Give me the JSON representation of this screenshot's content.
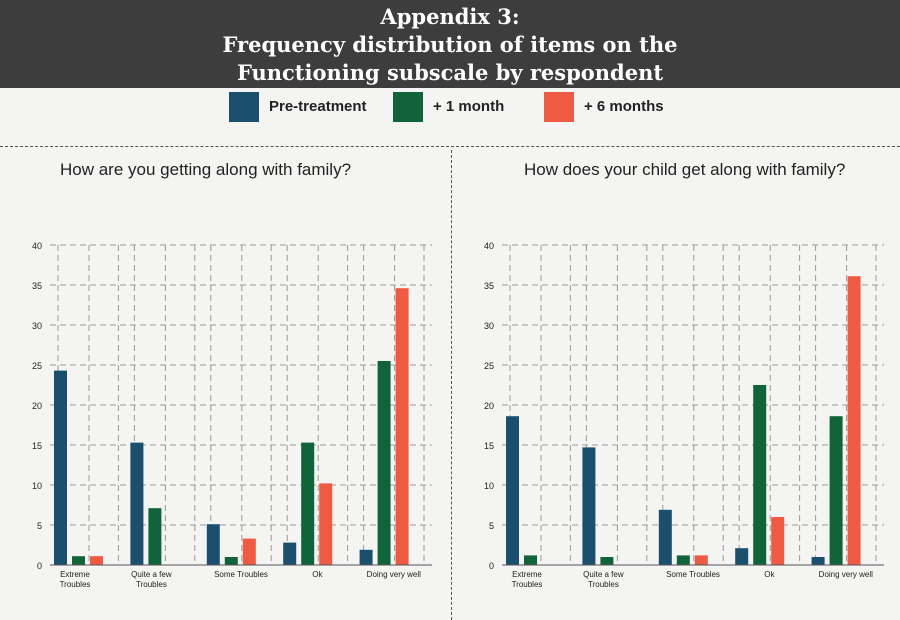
{
  "header": {
    "lines": [
      "Appendix 3:",
      "Frequency distribution of items on the",
      "Functioning subscale by respondent"
    ]
  },
  "legend": [
    {
      "label": "Pre-treatment",
      "color": "#1b4f6e"
    },
    {
      "label": "+ 1 month",
      "color": "#11643a"
    },
    {
      "label": "+ 6 months",
      "color": "#ef5a42"
    }
  ],
  "chart_data": [
    {
      "type": "bar",
      "title": "How are you getting along with family?",
      "categories": [
        "Extreme Troubles",
        "Quite a few Troubles",
        "Some Troubles",
        "Ok",
        "Doing very well"
      ],
      "category_lines": [
        [
          "Extreme",
          "Troubles"
        ],
        [
          "Quite a few",
          "Troubles"
        ],
        [
          "Some Troubles"
        ],
        [
          "Ok"
        ],
        [
          "Doing very well"
        ]
      ],
      "series": [
        {
          "name": "Pre-treatment",
          "values": [
            24.3,
            15.3,
            5.1,
            2.8,
            1.9
          ]
        },
        {
          "name": "+ 1 month",
          "values": [
            1.1,
            7.1,
            1.0,
            15.3,
            25.5
          ]
        },
        {
          "name": "+ 6 months",
          "values": [
            1.1,
            0,
            3.3,
            10.2,
            34.6
          ]
        }
      ],
      "yticks": [
        0,
        5,
        10,
        15,
        20,
        25,
        30,
        35,
        40
      ],
      "ylim": [
        0,
        40
      ],
      "grid": true
    },
    {
      "type": "bar",
      "title": "How does your child get along with family?",
      "categories": [
        "Extreme Troubles",
        "Quite a few Troubles",
        "Some Troubles",
        "Ok",
        "Doing very well"
      ],
      "category_lines": [
        [
          "Extreme",
          "Troubles"
        ],
        [
          "Quite a few",
          "Troubles"
        ],
        [
          "Some Troubles"
        ],
        [
          "Ok"
        ],
        [
          "Doing very well"
        ]
      ],
      "series": [
        {
          "name": "Pre-treatment",
          "values": [
            18.6,
            14.7,
            6.9,
            2.1,
            1.0
          ]
        },
        {
          "name": "+ 1 month",
          "values": [
            1.2,
            1.0,
            1.2,
            22.5,
            18.6
          ]
        },
        {
          "name": "+ 6 months",
          "values": [
            0,
            0,
            1.2,
            6.0,
            36.1
          ]
        }
      ],
      "yticks": [
        0,
        5,
        10,
        15,
        20,
        25,
        30,
        35,
        40
      ],
      "ylim": [
        0,
        40
      ],
      "grid": true
    }
  ]
}
